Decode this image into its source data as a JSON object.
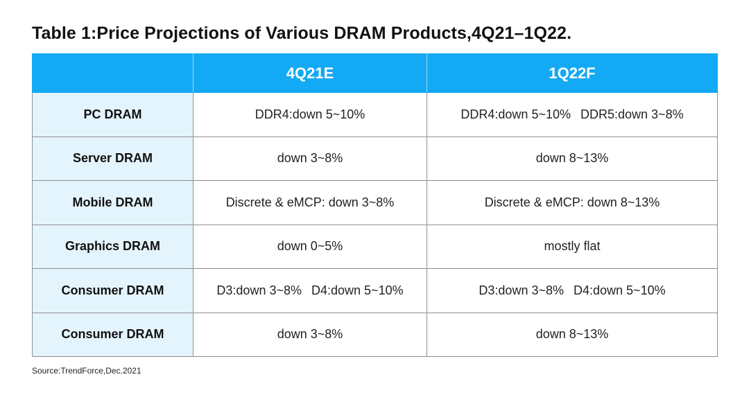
{
  "title": "Table 1:Price Projections of Various DRAM Products,4Q21–1Q22.",
  "colors": {
    "header_bg": "#14a9f5",
    "row_header_bg": "#e4f4fd",
    "border": "#8e8e8e"
  },
  "table": {
    "headers": [
      "",
      "4Q21E",
      "1Q22F"
    ],
    "rows": [
      {
        "label": "PC DRAM",
        "q4": [
          "DDR4:down 5~10%"
        ],
        "q1": [
          "DDR4:down 5~10%",
          "DDR5:down 3~8%"
        ]
      },
      {
        "label": "Server DRAM",
        "q4": [
          "down 3~8%"
        ],
        "q1": [
          "down 8~13%"
        ]
      },
      {
        "label": "Mobile DRAM",
        "q4": [
          "Discrete & eMCP: down 3~8%"
        ],
        "q1": [
          "Discrete & eMCP: down 8~13%"
        ]
      },
      {
        "label": "Graphics DRAM",
        "q4": [
          "down 0~5%"
        ],
        "q1": [
          "mostly flat"
        ]
      },
      {
        "label": "Consumer DRAM",
        "q4": [
          "D3:down 3~8%",
          "D4:down 5~10%"
        ],
        "q1": [
          "D3:down 3~8%",
          "D4:down 5~10%"
        ]
      },
      {
        "label": "Consumer DRAM",
        "q4": [
          "down 3~8%"
        ],
        "q1": [
          "down 8~13%"
        ]
      }
    ]
  },
  "source": "Source:TrendForce,Dec.2021"
}
